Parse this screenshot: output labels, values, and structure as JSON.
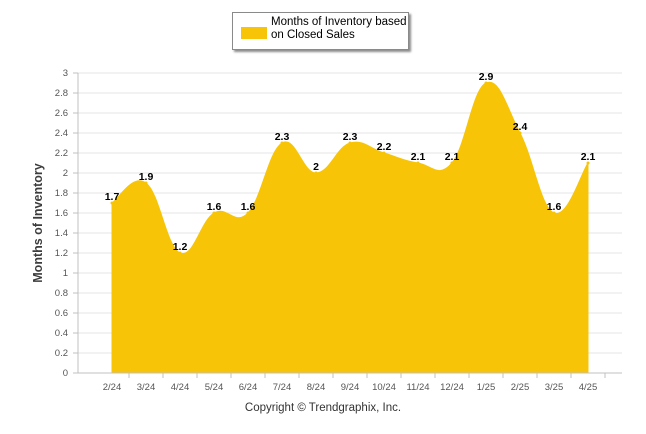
{
  "colors": {
    "area": "#F7C407",
    "grid": "#e6e6e6",
    "axis": "#c0c0c0"
  },
  "legend": {
    "label": "Months of Inventory based on Closed Sales"
  },
  "footer": {
    "copyright": "Copyright © Trendgraphix, Inc."
  },
  "chart_data": {
    "type": "area",
    "title": "",
    "ylabel": "Months of Inventory",
    "xlabel": "",
    "ylim": [
      0,
      3
    ],
    "yticks": [
      "0",
      "0.2",
      "0.4",
      "0.6",
      "0.8",
      "1",
      "1.2",
      "1.4",
      "1.6",
      "1.8",
      "2",
      "2.2",
      "2.4",
      "2.6",
      "2.8",
      "3"
    ],
    "categories": [
      "2/24",
      "3/24",
      "4/24",
      "5/24",
      "6/24",
      "7/24",
      "8/24",
      "9/24",
      "10/24",
      "11/24",
      "12/24",
      "1/25",
      "2/25",
      "3/25",
      "4/25"
    ],
    "series": [
      {
        "name": "Months of Inventory based on Closed Sales",
        "values": [
          1.7,
          1.9,
          1.2,
          1.6,
          1.6,
          2.3,
          2,
          2.3,
          2.2,
          2.1,
          2.1,
          2.9,
          2.4,
          1.6,
          2.1
        ],
        "data_labels": [
          "1.7",
          "1.9",
          "1.2",
          "1.6",
          "1.6",
          "2.3",
          "2",
          "2.3",
          "2.2",
          "2.1",
          "2.1",
          "2.9",
          "2.4",
          "1.6",
          "2.1"
        ]
      }
    ],
    "grid": true,
    "legend_position": "top-center"
  }
}
